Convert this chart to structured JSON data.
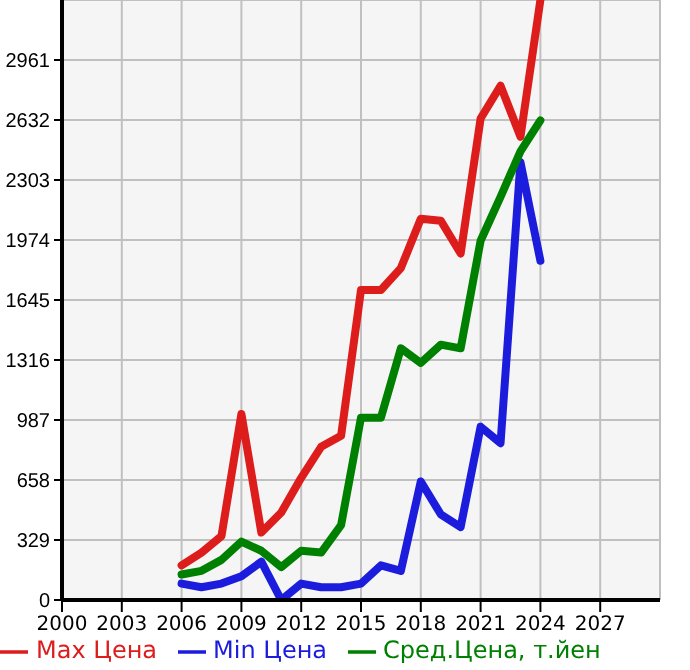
{
  "chart_data": {
    "type": "line",
    "x": [
      2006,
      2007,
      2008,
      2009,
      2010,
      2011,
      2012,
      2013,
      2014,
      2015,
      2016,
      2017,
      2018,
      2019,
      2020,
      2021,
      2022,
      2023,
      2024
    ],
    "series": [
      {
        "name": "Max Цена",
        "color": "#dd1c1c",
        "values": [
          190,
          260,
          350,
          1020,
          370,
          480,
          670,
          840,
          900,
          1700,
          1700,
          1820,
          2090,
          2080,
          1900,
          2640,
          2820,
          2540,
          3290
        ]
      },
      {
        "name": "Min Цена",
        "color": "#1c1cdd",
        "values": [
          90,
          70,
          90,
          130,
          210,
          0,
          90,
          70,
          70,
          90,
          190,
          160,
          650,
          470,
          400,
          950,
          860,
          2400,
          1860
        ]
      },
      {
        "name": "Сред.Цена, т.йен",
        "color": "#008000",
        "values": [
          140,
          160,
          220,
          320,
          270,
          180,
          270,
          260,
          410,
          1000,
          1000,
          1380,
          1300,
          1400,
          1380,
          1970,
          2210,
          2460,
          2630
        ]
      }
    ],
    "xlim": [
      2000,
      2030
    ],
    "xticks": [
      2000,
      2003,
      2006,
      2009,
      2012,
      2015,
      2018,
      2021,
      2024,
      2027
    ],
    "ylim": [
      0,
      3290
    ],
    "yticks": [
      0,
      329,
      658,
      987,
      1316,
      1645,
      1974,
      2303,
      2632,
      2961
    ],
    "grid": true,
    "legend": "bottom",
    "marker": "none",
    "line_style": "solid"
  }
}
